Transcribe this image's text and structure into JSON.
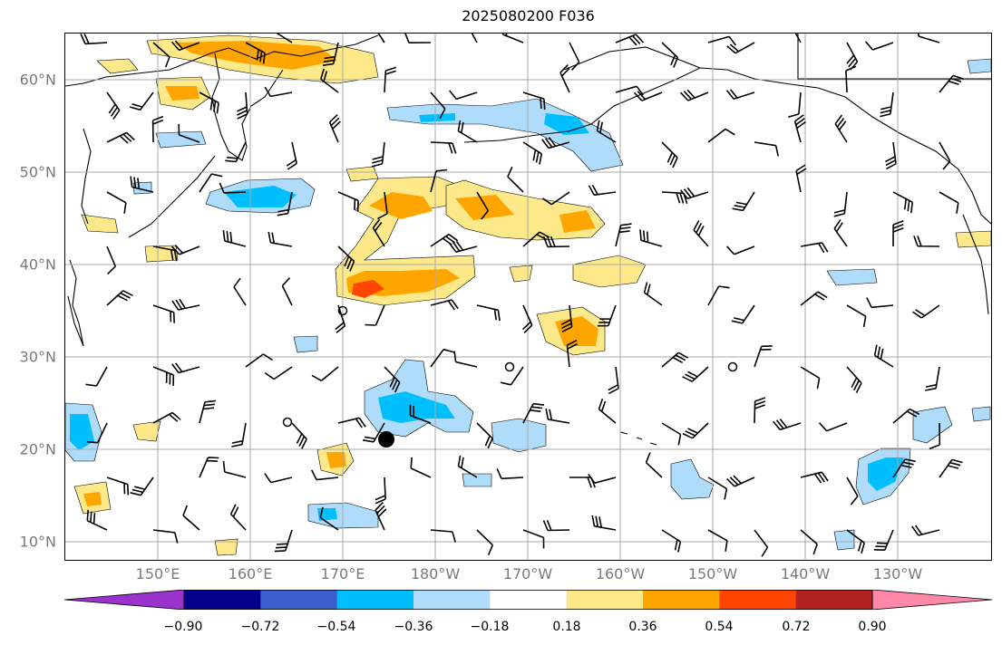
{
  "title": "2025080200 F036",
  "latitude_labels": [
    "60°N",
    "50°N",
    "40°N",
    "30°N",
    "20°N",
    "10°N"
  ],
  "longitude_labels": [
    "150°E",
    "160°E",
    "170°E",
    "180°W",
    "170°W",
    "160°W",
    "150°W",
    "140°W",
    "130°W"
  ],
  "colorbar": {
    "tick_labels": [
      "−0.90",
      "−0.72",
      "−0.54",
      "−0.36",
      "−0.18",
      "0.18",
      "0.36",
      "0.54",
      "0.72",
      "0.90"
    ],
    "colors": [
      "#9a32cd",
      "#00008b",
      "#3a5fcd",
      "#00bfff",
      "#aedcfa",
      "#ffffff",
      "#fde98a",
      "#ffa500",
      "#ff4500",
      "#b22222",
      "#ff88a8"
    ]
  },
  "map_colors": {
    "neg_light": "#aedcfa",
    "neg_mid": "#00bfff",
    "pos_light": "#fde98a",
    "pos_mid": "#ffa500",
    "pos_strong": "#ff4500",
    "grid": "#a9a9a9",
    "coast": "#000000"
  }
}
